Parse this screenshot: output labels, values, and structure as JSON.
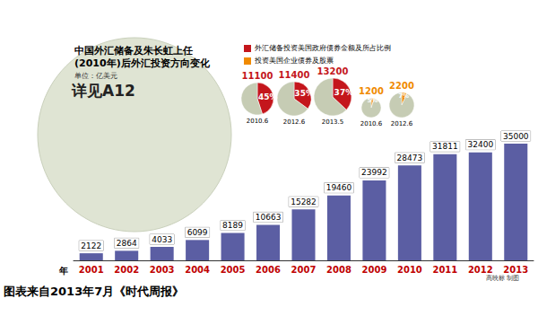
{
  "chart_data": [
    {
      "type": "bar",
      "title": "中国外汇储备及朱长虹上任\n(2010年)后外汇投资方向变化",
      "subtitle": "单位：亿美元",
      "xlabel": "年",
      "categories": [
        "2001",
        "2002",
        "2003",
        "2004",
        "2005",
        "2006",
        "2007",
        "2008",
        "2009",
        "2010",
        "2011",
        "2012",
        "2013"
      ],
      "values": [
        2122,
        2864,
        4033,
        6099,
        8189,
        10663,
        15282,
        19460,
        23992,
        28473,
        31811,
        32400,
        35000
      ],
      "color": "#5b5ea3",
      "ylim": [
        0,
        35000
      ],
      "yticks": [
        0,
        35000
      ],
      "grid": false,
      "tick_labels": "x",
      "data_labels": true,
      "annotations": [
        "详见A12",
        "高映标 制图",
        "图表来自2013年7月《时代周报》"
      ]
    },
    {
      "type": "pie",
      "legend": "top",
      "series": [
        {
          "name": "外汇储备投资美国政府债券金额及所占比例",
          "color": "#c4161c",
          "categories": [
            "2010.6",
            "2012.6",
            "2013.5"
          ],
          "amounts": [
            11100,
            11400,
            13200
          ],
          "values": [
            45,
            35,
            37
          ],
          "value_labels": [
            "45%",
            "35%",
            "37%"
          ]
        },
        {
          "name": "投资美国企业债券及股票",
          "color": "#f08a00",
          "categories": [
            "2010.6",
            "2012.6"
          ],
          "amounts": [
            1200,
            2200
          ],
          "values": [
            5,
            7
          ],
          "value_labels": [
            "5%",
            "7%"
          ]
        }
      ]
    }
  ]
}
